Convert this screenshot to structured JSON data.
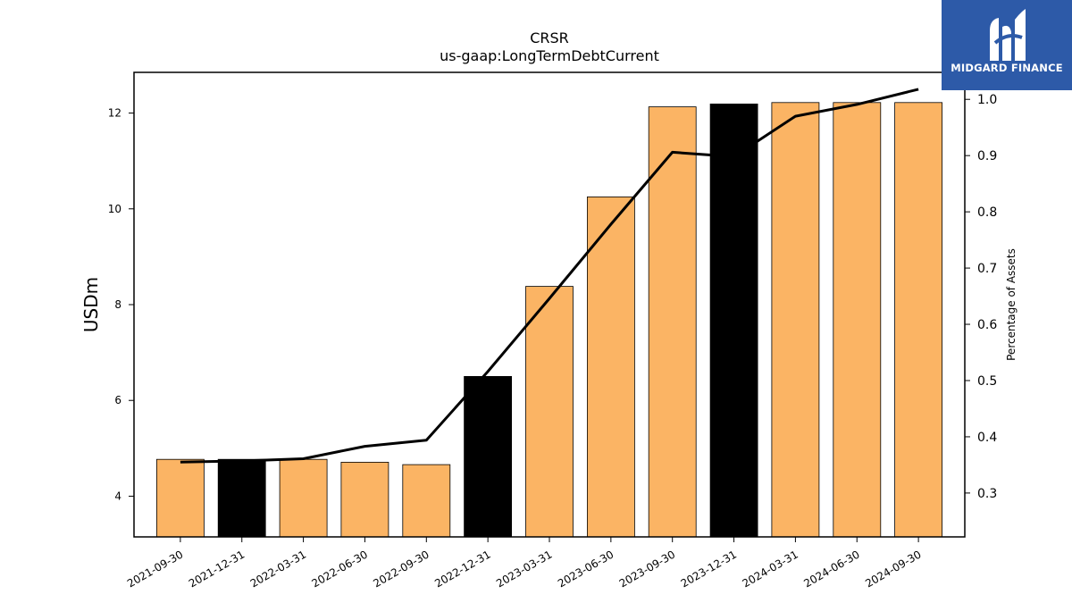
{
  "chart_data": {
    "type": "bar",
    "title": "CRSR",
    "subtitle": "us-gaap:LongTermDebtCurrent",
    "ylabel": "USDm",
    "y2label": "Percentage of Assets",
    "ylim": [
      3.15,
      12.85
    ],
    "y2lim": [
      0.222,
      1.048
    ],
    "yticks": [
      4,
      6,
      8,
      10,
      12
    ],
    "y2ticks": [
      0.3,
      0.4,
      0.5,
      0.6,
      0.7,
      0.8,
      0.9,
      1.0
    ],
    "y2tick_labels": [
      "0.3",
      "0.4",
      "0.5",
      "0.6",
      "0.7",
      "0.8",
      "0.9",
      "1.0"
    ],
    "categories": [
      "2021-09-30",
      "2021-12-31",
      "2022-03-31",
      "2022-06-30",
      "2022-09-30",
      "2022-12-31",
      "2023-03-31",
      "2023-06-30",
      "2023-09-30",
      "2023-12-31",
      "2024-03-31",
      "2024-06-30",
      "2024-09-30"
    ],
    "series": [
      {
        "type": "bar",
        "values": [
          4.77,
          4.77,
          4.77,
          4.71,
          4.66,
          6.5,
          8.38,
          10.25,
          12.13,
          12.19,
          12.22,
          12.22,
          12.22
        ],
        "highlight": [
          false,
          true,
          false,
          false,
          false,
          true,
          false,
          false,
          false,
          true,
          false,
          false,
          false
        ]
      },
      {
        "type": "line",
        "axis": "right",
        "values": [
          0.355,
          0.357,
          0.361,
          0.383,
          0.394,
          0.516,
          0.646,
          0.778,
          0.906,
          0.898,
          0.97,
          0.991,
          1.018
        ]
      }
    ],
    "colors": {
      "bar": "#fbb464",
      "highlight": "#000000",
      "line": "#000000",
      "edge": "#000000"
    },
    "grid": false
  },
  "logo": {
    "text": "MIDGARD FINANCE",
    "color": "#2d5aa8",
    "icon": "midgard-logo-icon"
  }
}
